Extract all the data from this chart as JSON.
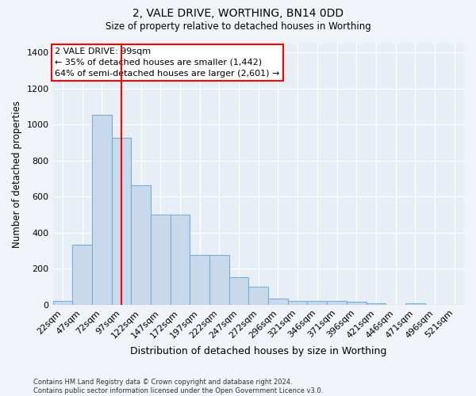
{
  "title1": "2, VALE DRIVE, WORTHING, BN14 0DD",
  "title2": "Size of property relative to detached houses in Worthing",
  "xlabel": "Distribution of detached houses by size in Worthing",
  "ylabel": "Number of detached properties",
  "categories": [
    "22sqm",
    "47sqm",
    "72sqm",
    "97sqm",
    "122sqm",
    "147sqm",
    "172sqm",
    "197sqm",
    "222sqm",
    "247sqm",
    "272sqm",
    "296sqm",
    "321sqm",
    "346sqm",
    "371sqm",
    "396sqm",
    "421sqm",
    "446sqm",
    "471sqm",
    "496sqm",
    "521sqm"
  ],
  "values": [
    20,
    335,
    1055,
    925,
    665,
    500,
    500,
    275,
    275,
    155,
    100,
    35,
    20,
    20,
    20,
    15,
    10,
    0,
    10,
    0,
    0
  ],
  "bar_color": "#c9d9ec",
  "bar_edge_color": "#7aadd4",
  "vline_color": "red",
  "annotation_text": "2 VALE DRIVE: 99sqm\n← 35% of detached houses are smaller (1,442)\n64% of semi-detached houses are larger (2,601) →",
  "ylim": [
    0,
    1450
  ],
  "yticks": [
    0,
    200,
    400,
    600,
    800,
    1000,
    1200,
    1400
  ],
  "footnote": "Contains HM Land Registry data © Crown copyright and database right 2024.\nContains public sector information licensed under the Open Government Licence v3.0.",
  "fig_bg_color": "#f0f4f9",
  "plot_bg_color": "#e8eef5"
}
